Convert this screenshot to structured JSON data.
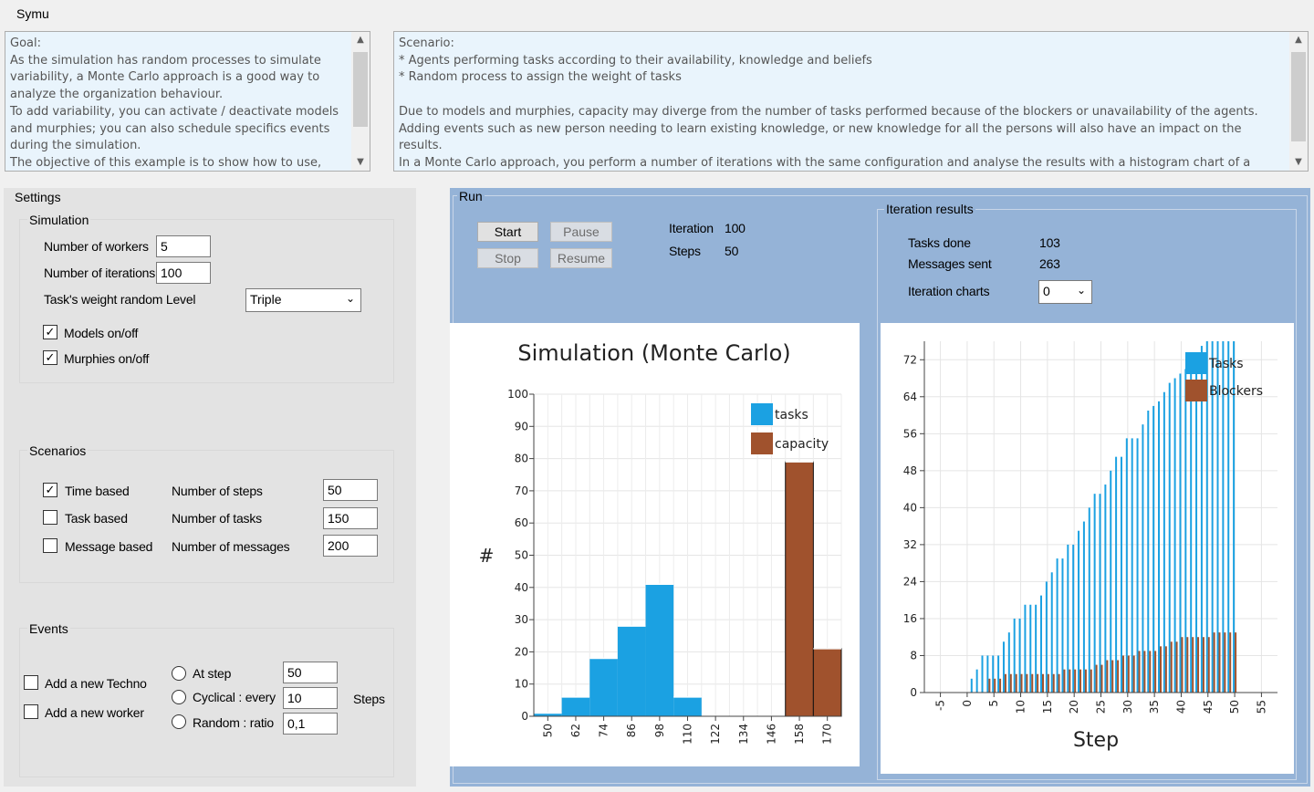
{
  "app": {
    "title": "Symu"
  },
  "goal": {
    "text": "Goal:\nAs the simulation has random processes to simulate variability, a Monte Carlo approach is a good way to analyze the organization behaviour.\nTo add variability, you can activate / deactivate models and murphies; you can also schedule specifics events during the simulation.\nThe objective of this example is to show how to use,"
  },
  "scenario": {
    "text": "Scenario:\n* Agents performing tasks according to their availability, knowledge and beliefs\n* Random process to assign the weight of tasks\n\nDue to models and murphies, capacity may diverge from the number of tasks performed because of the blockers or unavailability of the agents.\nAdding events such as new person needing to learn existing knowledge, or new knowledge for all the persons will also have an impact on the results.\nIn a Monte Carlo approach, you perform a number of iterations with the same configuration and analyse the results with a histogram chart of a"
  },
  "settings": {
    "title": "Settings",
    "simulation": {
      "title": "Simulation",
      "workers_label": "Number of workers",
      "workers_value": "5",
      "iterations_label": "Number of iterations",
      "iterations_value": "100",
      "random_level_label": "Task's weight random Level",
      "random_level_value": "Triple",
      "models_label": "Models on/off",
      "models_checked": true,
      "murphies_label": "Murphies on/off",
      "murphies_checked": true
    },
    "scenarios": {
      "title": "Scenarios",
      "time_based_label": "Time based",
      "time_based_checked": true,
      "task_based_label": "Task based",
      "message_based_label": "Message based",
      "steps_label": "Number of steps",
      "steps_value": "50",
      "tasks_label": "Number of tasks",
      "tasks_value": "150",
      "messages_label": "Number of messages",
      "messages_value": "200"
    },
    "events": {
      "title": "Events",
      "new_techno_label": "Add a new Techno",
      "new_worker_label": "Add a new worker",
      "at_step_label": "At step",
      "at_step_value": "50",
      "cyclical_label": "Cyclical : every",
      "cyclical_value": "10",
      "random_label": "Random : ratio",
      "random_value": "0,1",
      "steps_unit": "Steps"
    }
  },
  "run": {
    "title": "Run",
    "start_label": "Start",
    "pause_label": "Pause",
    "stop_label": "Stop",
    "resume_label": "Resume",
    "iteration_label": "Iteration",
    "iteration_value": "100",
    "steps_label": "Steps",
    "steps_value": "50"
  },
  "iteration_results": {
    "title": "Iteration results",
    "tasks_done_label": "Tasks done",
    "tasks_done_value": "103",
    "messages_sent_label": "Messages sent",
    "messages_sent_value": "263",
    "charts_label": "Iteration charts",
    "charts_value": "0"
  },
  "colors": {
    "tasks": "#1ba1e2",
    "capacity": "#a0522d",
    "run_panel": "#95b3d7"
  },
  "chart_data": [
    {
      "type": "bar",
      "title": "Simulation (Monte Carlo)",
      "xlabel": "",
      "ylabel": "#",
      "ylim": [
        0,
        100
      ],
      "yticks": [
        0,
        10,
        20,
        30,
        40,
        50,
        60,
        70,
        80,
        90,
        100
      ],
      "xticks": [
        50,
        62,
        74,
        86,
        98,
        110,
        122,
        134,
        146,
        158,
        170
      ],
      "legend": "top-right",
      "series": [
        {
          "name": "tasks",
          "bins": [
            {
              "from": 44,
              "to": 56,
              "value": 1
            },
            {
              "from": 56,
              "to": 68,
              "value": 6
            },
            {
              "from": 68,
              "to": 80,
              "value": 18
            },
            {
              "from": 80,
              "to": 92,
              "value": 28
            },
            {
              "from": 92,
              "to": 104,
              "value": 41
            },
            {
              "from": 104,
              "to": 116,
              "value": 6
            }
          ]
        },
        {
          "name": "capacity",
          "bins": [
            {
              "from": 152,
              "to": 164,
              "value": 79
            },
            {
              "from": 164,
              "to": 176,
              "value": 21
            }
          ]
        }
      ]
    },
    {
      "type": "bar",
      "title": "",
      "xlabel": "Step",
      "ylabel": "",
      "ylim": [
        0,
        76
      ],
      "yticks": [
        0,
        8,
        16,
        24,
        32,
        40,
        48,
        56,
        64,
        72
      ],
      "xticks": [
        -5,
        0,
        5,
        10,
        15,
        20,
        25,
        30,
        35,
        40,
        45,
        50,
        55
      ],
      "legend": "top-right",
      "x": [
        1,
        2,
        3,
        4,
        5,
        6,
        7,
        8,
        9,
        10,
        11,
        12,
        13,
        14,
        15,
        16,
        17,
        18,
        19,
        20,
        21,
        22,
        23,
        24,
        25,
        26,
        27,
        28,
        29,
        30,
        31,
        32,
        33,
        34,
        35,
        36,
        37,
        38,
        39,
        40,
        41,
        42,
        43,
        44,
        45,
        46,
        47,
        48,
        49,
        50
      ],
      "series": [
        {
          "name": "Tasks",
          "values": [
            3,
            5,
            8,
            8,
            8,
            8,
            11,
            13,
            16,
            16,
            19,
            19,
            19,
            21,
            24,
            26,
            29,
            29,
            32,
            32,
            35,
            37,
            40,
            43,
            43,
            45,
            48,
            51,
            51,
            55,
            55,
            55,
            58,
            61,
            62,
            63,
            65,
            67,
            68,
            69,
            70,
            72,
            73,
            75,
            76,
            76,
            76,
            76,
            76,
            76
          ]
        },
        {
          "name": "Blockers",
          "values": [
            0,
            0,
            0,
            3,
            3,
            3,
            4,
            4,
            4,
            4,
            4,
            4,
            4,
            4,
            4,
            4,
            4,
            5,
            5,
            5,
            5,
            5,
            5,
            6,
            6,
            7,
            7,
            7,
            8,
            8,
            8,
            9,
            9,
            9,
            9,
            10,
            10,
            11,
            11,
            12,
            12,
            12,
            12,
            12,
            12,
            13,
            13,
            13,
            13,
            13
          ]
        }
      ]
    }
  ]
}
